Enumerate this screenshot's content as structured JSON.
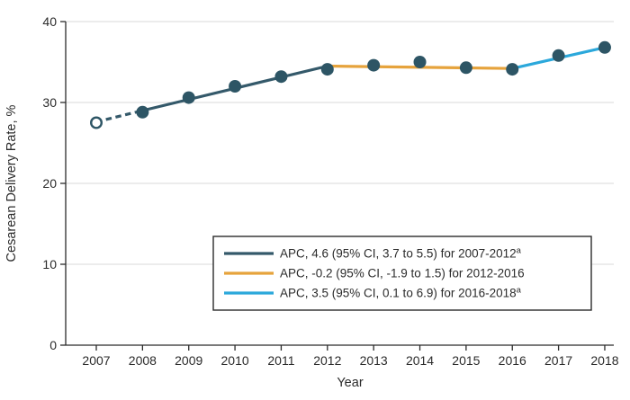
{
  "chart_data": {
    "type": "line",
    "title": "",
    "xlabel": "Year",
    "ylabel": "Cesarean Delivery Rate, %",
    "ylim": [
      0,
      40
    ],
    "yticks": [
      0,
      10,
      20,
      30,
      40
    ],
    "xticks": [
      2007,
      2008,
      2009,
      2010,
      2011,
      2012,
      2013,
      2014,
      2015,
      2016,
      2017,
      2018
    ],
    "grid": "horizontal-light",
    "legend_position": "inside-lower-right",
    "observed_points": [
      {
        "year": 2007,
        "value": 27.5,
        "marker": "open"
      },
      {
        "year": 2008,
        "value": 28.8,
        "marker": "filled"
      },
      {
        "year": 2009,
        "value": 30.6,
        "marker": "filled"
      },
      {
        "year": 2010,
        "value": 32.0,
        "marker": "filled"
      },
      {
        "year": 2011,
        "value": 33.2,
        "marker": "filled"
      },
      {
        "year": 2012,
        "value": 34.1,
        "marker": "filled"
      },
      {
        "year": 2013,
        "value": 34.6,
        "marker": "filled"
      },
      {
        "year": 2014,
        "value": 35.0,
        "marker": "filled"
      },
      {
        "year": 2015,
        "value": 34.3,
        "marker": "filled"
      },
      {
        "year": 2016,
        "value": 34.1,
        "marker": "filled"
      },
      {
        "year": 2017,
        "value": 35.8,
        "marker": "filled"
      },
      {
        "year": 2018,
        "value": 36.8,
        "marker": "filled"
      }
    ],
    "trend_lines": [
      {
        "segment": "2007-2008",
        "style": "dashed",
        "color": "#34596A",
        "from": {
          "year": 2007,
          "value": 27.6
        },
        "to": {
          "year": 2008,
          "value": 29.0
        }
      },
      {
        "segment": "2008-2012",
        "style": "solid",
        "color": "#34596A",
        "from": {
          "year": 2008,
          "value": 29.0
        },
        "to": {
          "year": 2012,
          "value": 34.5
        }
      },
      {
        "segment": "2012-2016",
        "style": "solid",
        "color": "#E6A33C",
        "from": {
          "year": 2012,
          "value": 34.5
        },
        "to": {
          "year": 2016,
          "value": 34.2
        }
      },
      {
        "segment": "2016-2018",
        "style": "solid",
        "color": "#2BA8DB",
        "from": {
          "year": 2016,
          "value": 34.2
        },
        "to": {
          "year": 2018,
          "value": 36.8
        }
      }
    ],
    "legend": {
      "border_color": "#2b2b2b",
      "items": [
        {
          "color": "#34596A",
          "label": "APC, 4.6 (95% CI, 3.7 to 5.5) for 2007-2012",
          "superscript": "a"
        },
        {
          "color": "#E6A33C",
          "label": "APC, -0.2 (95% CI, -1.9 to 1.5) for 2012-2016",
          "superscript": ""
        },
        {
          "color": "#2BA8DB",
          "label": "APC, 3.5 (95% CI, 0.1 to 6.9) for 2016-2018",
          "superscript": "a"
        }
      ]
    },
    "colors": {
      "point_fill": "#2D5565",
      "axis": "#2b2b2b",
      "gridline": "#dadada",
      "open_point_fill": "#ffffff"
    }
  }
}
